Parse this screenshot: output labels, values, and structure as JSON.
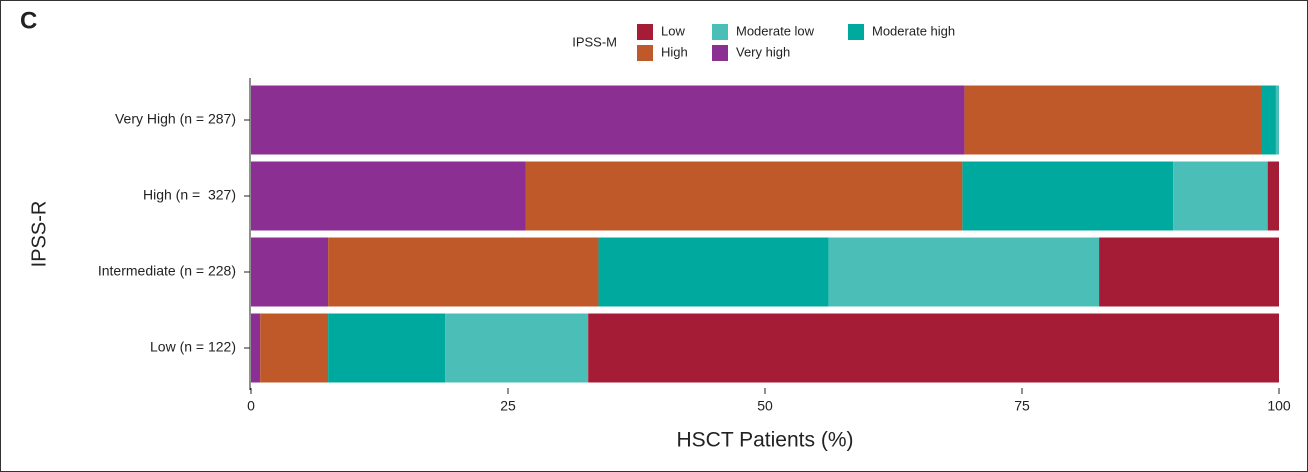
{
  "chart_data": {
    "type": "stacked-barh",
    "panel_label": "C",
    "legend_title": "IPSS-M",
    "y_label": "IPSS-R",
    "x_label": "HSCT Patients (%)",
    "categories": [
      "Very High (n = 287)",
      "High (n =  327)",
      "Intermediate (n = 228)",
      "Low (n = 122)"
    ],
    "series": [
      {
        "name": "Low",
        "color": "#a51c36",
        "values": [
          0,
          1.1,
          17.5,
          67.2
        ]
      },
      {
        "name": "Moderate low",
        "color": "#4bbfb7",
        "values": [
          0.3,
          9.2,
          26.3,
          13.9
        ]
      },
      {
        "name": "Moderate high",
        "color": "#00a99d",
        "values": [
          1.4,
          20.5,
          22.4,
          11.4
        ]
      },
      {
        "name": "High",
        "color": "#c0592a",
        "values": [
          28.9,
          42.5,
          26.3,
          6.6
        ]
      },
      {
        "name": "Very high",
        "color": "#8b2f93",
        "values": [
          69.4,
          26.7,
          7.5,
          0.9
        ]
      }
    ],
    "xlim": [
      0,
      100
    ],
    "xticks": [
      0,
      25,
      50,
      75,
      100
    ]
  }
}
